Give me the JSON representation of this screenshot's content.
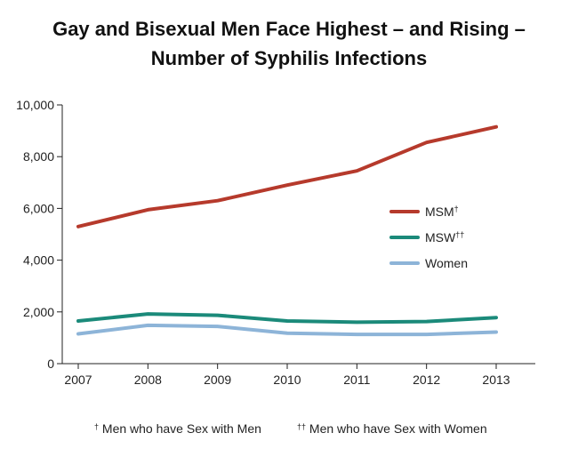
{
  "chart_data": {
    "type": "line",
    "title": "Gay and Bisexual Men Face Highest – and Rising –",
    "title_line2": "Number of Syphilis Infections",
    "xlabel": "",
    "ylabel": "",
    "categories": [
      "2007",
      "2008",
      "2009",
      "2010",
      "2011",
      "2012",
      "2013"
    ],
    "ylim": [
      0,
      10000
    ],
    "yticks": [
      "0",
      "2,000",
      "4,000",
      "6,000",
      "8,000",
      "10,000"
    ],
    "grid": false,
    "legend_position": "right-middle",
    "series": [
      {
        "name": "MSM",
        "name_mark": "†",
        "color": "#b63a2c",
        "values": [
          5300,
          5950,
          6300,
          6900,
          7450,
          8550,
          9150
        ]
      },
      {
        "name": "MSW",
        "name_mark": "††",
        "color": "#1b8a7a",
        "values": [
          1650,
          1920,
          1870,
          1650,
          1600,
          1630,
          1780
        ]
      },
      {
        "name": "Women",
        "name_mark": "",
        "color": "#8db4d8",
        "values": [
          1150,
          1480,
          1440,
          1180,
          1130,
          1130,
          1220
        ]
      }
    ]
  },
  "footnotes": {
    "f1_mark": "†",
    "f1_text": "Men who have Sex with Men",
    "f2_mark": "††",
    "f2_text": "Men who have Sex with Women"
  }
}
